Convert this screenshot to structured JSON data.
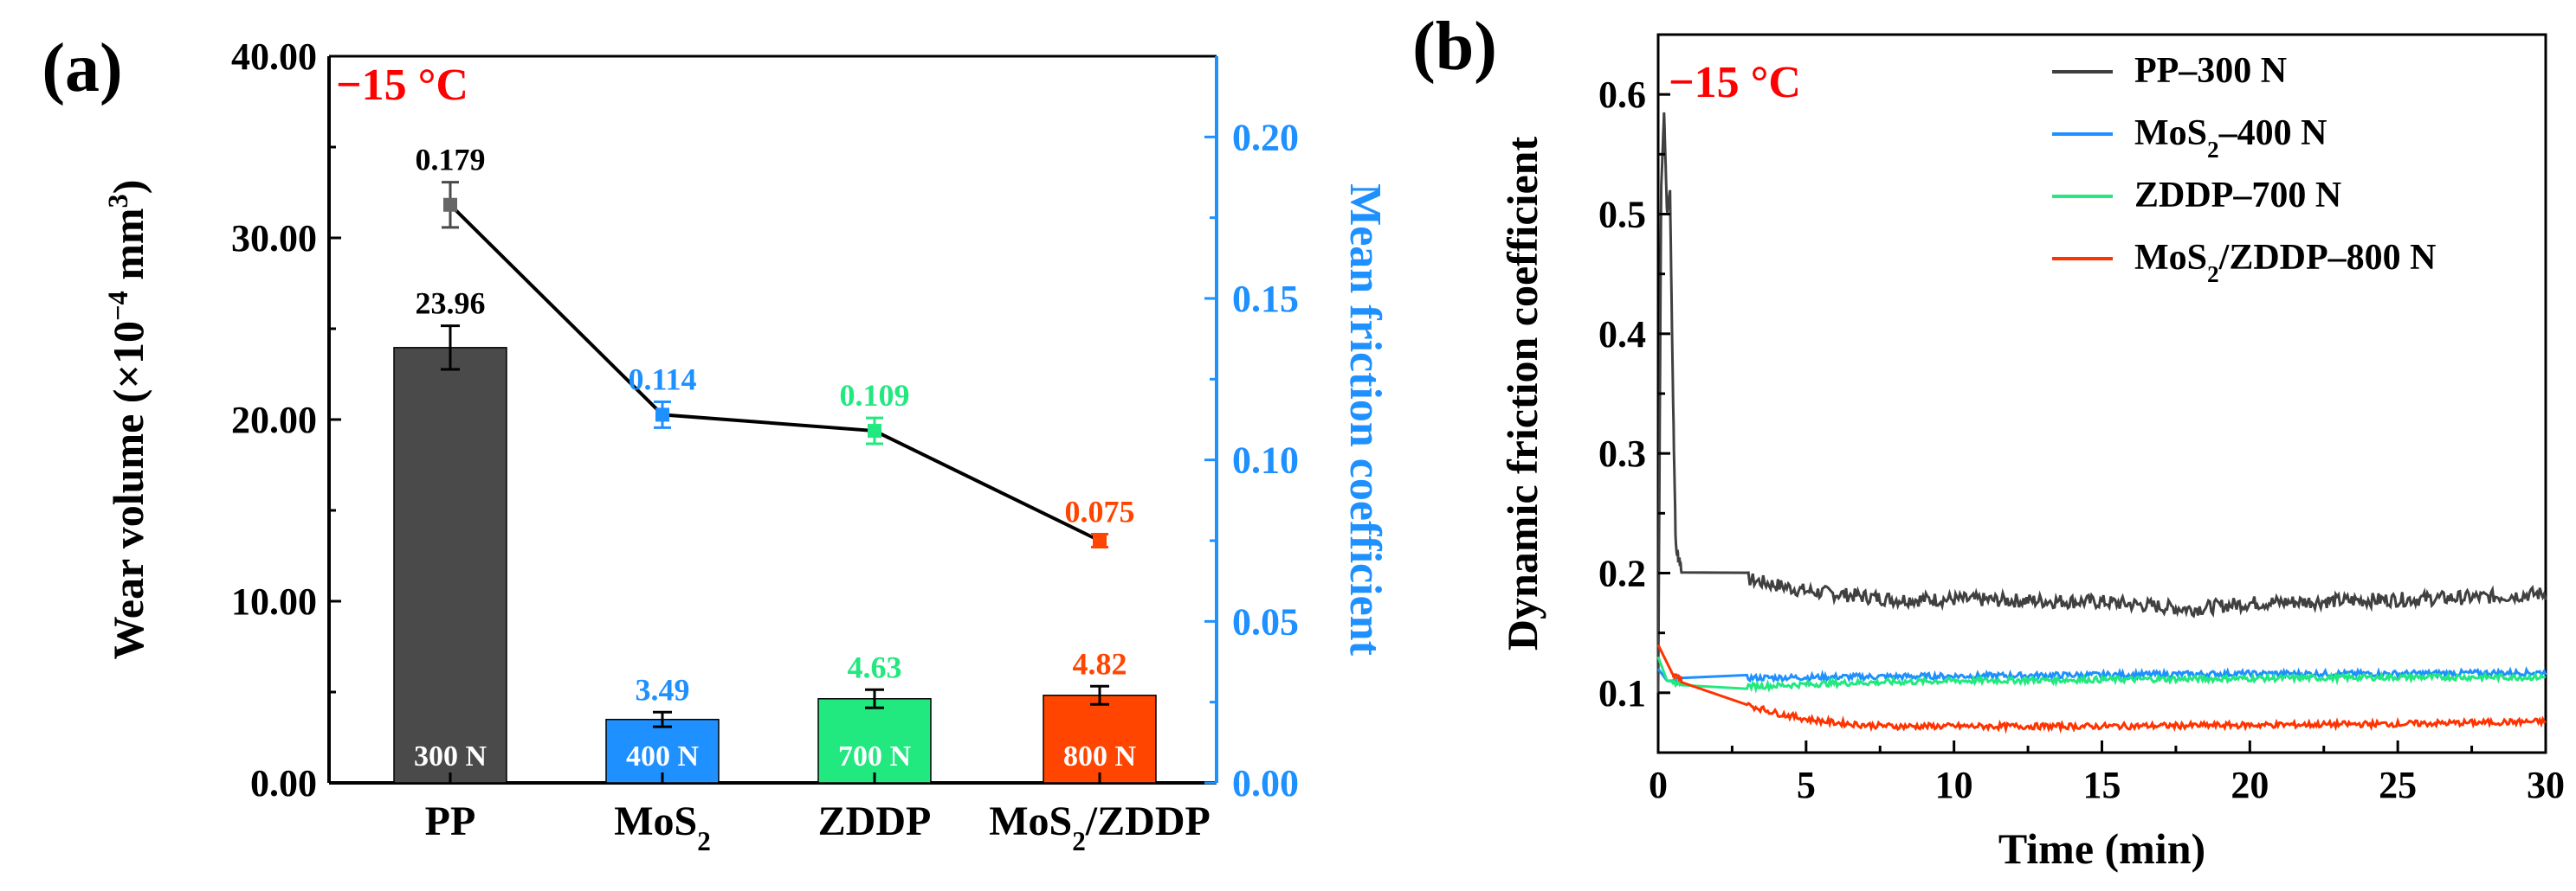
{
  "chart_data": [
    {
      "panel": "(a)",
      "type": "bar+line",
      "temperature_label": "−15 °C",
      "ylabel": "Wear volume (×10",
      "ylabel_sup": "−4",
      "ylabel_mid": " mm",
      "ylabel_sup2": "3",
      "ylabel_end": ")",
      "y2label": "Mean friction coefficient",
      "ylim": [
        0,
        40
      ],
      "y2lim": [
        0,
        0.225
      ],
      "yticks": [
        "0.00",
        "10.00",
        "20.00",
        "30.00",
        "40.00"
      ],
      "y2ticks": [
        "0.00",
        "0.05",
        "0.10",
        "0.15",
        "0.20"
      ],
      "categories": [
        "PP",
        "MoS2",
        "ZDDP",
        "MoS2/ZDDP"
      ],
      "category_labels": [
        {
          "main": "PP"
        },
        {
          "main": "MoS",
          "sub": "2"
        },
        {
          "main": "ZDDP"
        },
        {
          "main": "MoS",
          "sub": "2",
          "tail": "/ZDDP"
        }
      ],
      "wear_volume": [
        23.96,
        3.49,
        4.63,
        4.82
      ],
      "wear_volume_labels": [
        "23.96",
        "3.49",
        "4.63",
        "4.82"
      ],
      "wear_error": [
        1.2,
        0.4,
        0.5,
        0.5
      ],
      "load_labels": [
        "300 N",
        "400 N",
        "700 N",
        "800 N"
      ],
      "mean_friction": [
        0.179,
        0.114,
        0.109,
        0.075
      ],
      "mean_friction_labels": [
        "0.179",
        "0.114",
        "0.109",
        "0.075"
      ],
      "friction_error": [
        0.007,
        0.004,
        0.004,
        0.002
      ],
      "colors": [
        "#4a4a4a",
        "#1e90ff",
        "#21e87f",
        "#ff4500"
      ],
      "axis_color_right": "#1e90ff",
      "temp_color": "#ff0000"
    },
    {
      "panel": "(b)",
      "type": "line",
      "temperature_label": "−15 °C",
      "xlabel": "Time (min)",
      "ylabel": "Dynamic friction coefficient",
      "xlim": [
        0,
        30
      ],
      "ylim": [
        0.05,
        0.65
      ],
      "xticks": [
        "0",
        "5",
        "10",
        "15",
        "20",
        "25",
        "30"
      ],
      "yticks": [
        "0.1",
        "0.2",
        "0.3",
        "0.4",
        "0.5",
        "0.6"
      ],
      "legend_position": "top-right",
      "series": [
        {
          "name": "PP–300 N",
          "legend": {
            "main": "PP–300 N"
          },
          "color": "#404040",
          "x": [
            0,
            0.1,
            0.2,
            0.3,
            0.4,
            0.5,
            0.6,
            0.8,
            1,
            1.5,
            2,
            3,
            4,
            5,
            8,
            10,
            15,
            18,
            20,
            25,
            28,
            30
          ],
          "y": [
            0.1,
            0.52,
            0.585,
            0.5,
            0.52,
            0.35,
            0.22,
            0.205,
            0.2,
            0.2,
            0.205,
            0.195,
            0.19,
            0.185,
            0.178,
            0.178,
            0.176,
            0.17,
            0.175,
            0.178,
            0.18,
            0.183
          ]
        },
        {
          "name": "MoS2–400 N",
          "legend": {
            "main": "MoS",
            "sub": "2",
            "tail": "–400 N"
          },
          "color": "#1e90ff",
          "x": [
            0,
            0.3,
            1,
            2,
            5,
            10,
            15,
            20,
            25,
            30
          ],
          "y": [
            0.12,
            0.11,
            0.11,
            0.112,
            0.113,
            0.114,
            0.115,
            0.116,
            0.116,
            0.117
          ]
        },
        {
          "name": "ZDDP–700 N",
          "legend": {
            "main": "ZDDP–700 N"
          },
          "color": "#21e87f",
          "x": [
            0,
            0.3,
            1,
            2,
            4,
            6,
            10,
            15,
            20,
            25,
            30
          ],
          "y": [
            0.13,
            0.11,
            0.107,
            0.105,
            0.106,
            0.108,
            0.11,
            0.111,
            0.112,
            0.113,
            0.113
          ]
        },
        {
          "name": "MoS2/ZDDP–800 N",
          "legend": {
            "main": "MoS",
            "sub": "2",
            "tail": "/ZDDP–800 N"
          },
          "color": "#ff3300",
          "x": [
            0,
            0.2,
            0.5,
            1,
            2,
            3,
            4,
            5,
            6,
            7,
            8,
            10,
            15,
            20,
            25,
            30
          ],
          "y": [
            0.14,
            0.13,
            0.115,
            0.108,
            0.1,
            0.09,
            0.083,
            0.078,
            0.075,
            0.073,
            0.072,
            0.072,
            0.072,
            0.073,
            0.074,
            0.076
          ]
        }
      ]
    }
  ]
}
